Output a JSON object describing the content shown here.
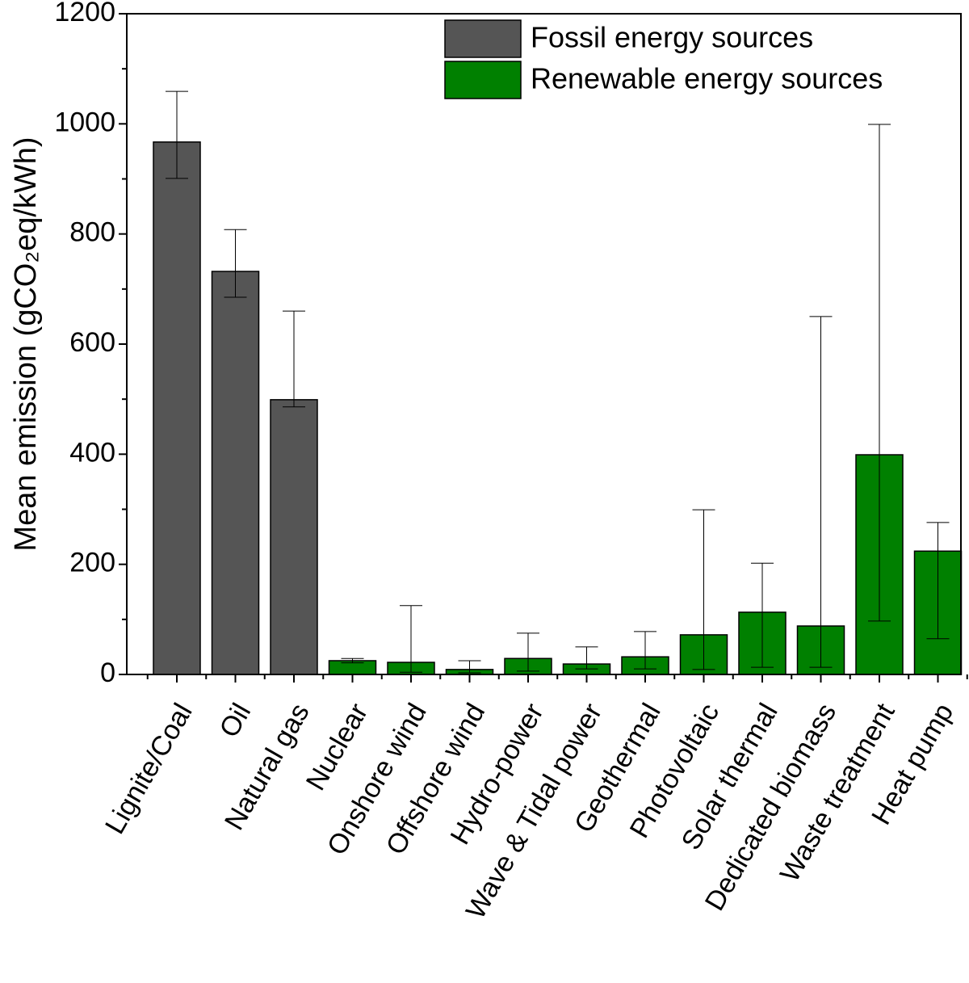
{
  "chart_data": {
    "type": "bar",
    "y_label": "Mean emission (gCO₂eq/kWh)",
    "categories": [
      "Lignite/Coal",
      "Oil",
      "Natural gas",
      "Nuclear",
      "Onshore wind",
      "Offshore wind",
      "Hydro-power",
      "Wave & Tidal power",
      "Geothermal",
      "Photovoltaic",
      "Solar thermal",
      "Dedicated biomass",
      "Waste treatment",
      "Heat pump"
    ],
    "series": [
      {
        "name": "Fossil energy sources",
        "color": "#555555",
        "values": [
          967,
          732,
          499,
          null,
          null,
          null,
          null,
          null,
          null,
          null,
          null,
          null,
          null,
          null
        ],
        "error_min": [
          901,
          685,
          486,
          null,
          null,
          null,
          null,
          null,
          null,
          null,
          null,
          null,
          null,
          null
        ],
        "error_max": [
          1059,
          808,
          660,
          null,
          null,
          null,
          null,
          null,
          null,
          null,
          null,
          null,
          null,
          null
        ]
      },
      {
        "name": "Renewable energy sources",
        "color": "#008000",
        "values": [
          null,
          null,
          null,
          25,
          22,
          9,
          29,
          19,
          32,
          72,
          113,
          88,
          399,
          224
        ],
        "error_min": [
          null,
          null,
          null,
          21,
          4,
          3,
          6,
          10,
          10,
          9,
          13,
          13,
          97,
          65
        ],
        "error_max": [
          null,
          null,
          null,
          29,
          125,
          25,
          75,
          50,
          78,
          299,
          202,
          650,
          999,
          276
        ]
      }
    ],
    "ylim": [
      0,
      1200
    ],
    "yticks": [
      0,
      200,
      400,
      600,
      800,
      1000,
      1200
    ],
    "grid": false,
    "legend": "top-right"
  }
}
